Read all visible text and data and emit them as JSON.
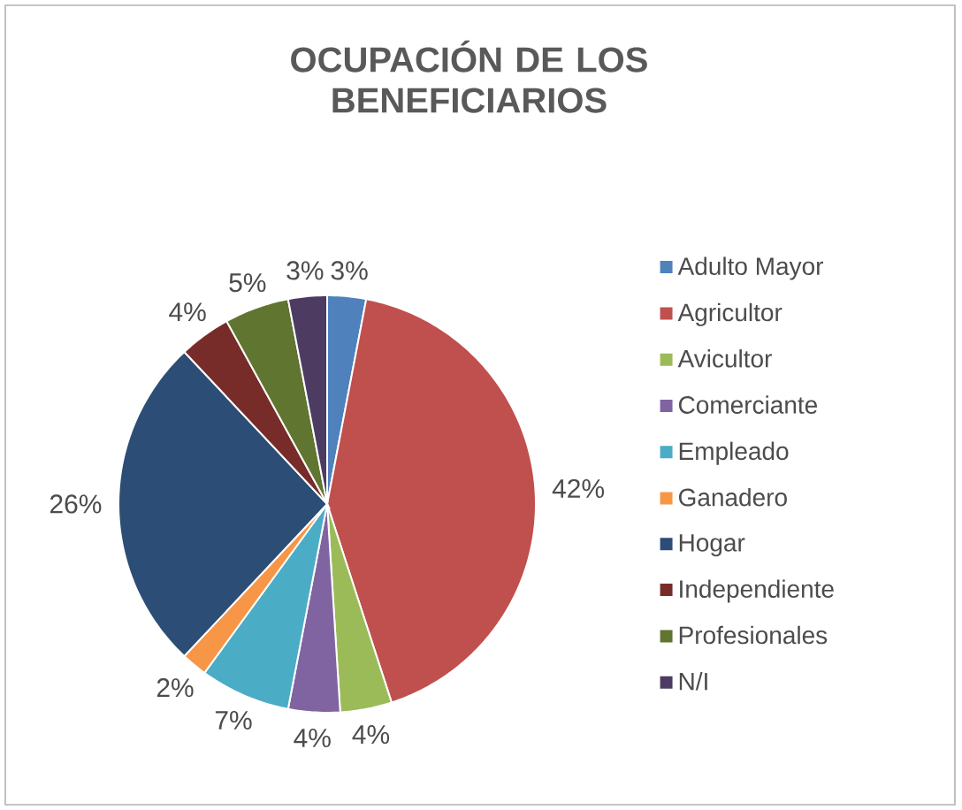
{
  "chart_data": {
    "type": "pie",
    "title": "OCUPACIÓN DE LOS BENEFICIARIOS",
    "categories": [
      "Adulto Mayor",
      "Agricultor",
      "Avicultor",
      "Comerciante",
      "Empleado",
      "Ganadero",
      "Hogar",
      "Independiente",
      "Profesionales",
      "N/I"
    ],
    "values": [
      3,
      42,
      4,
      4,
      7,
      2,
      26,
      4,
      5,
      3
    ],
    "value_labels": [
      "3%",
      "42%",
      "4%",
      "4%",
      "7%",
      "2%",
      "26%",
      "4%",
      "5%",
      "3%"
    ],
    "colors": [
      "#4f81bd",
      "#c0504d",
      "#9bbb59",
      "#8064a2",
      "#4bacc6",
      "#f79646",
      "#2c4d75",
      "#772c2a",
      "#5f7530",
      "#4d3b62"
    ],
    "legend": "right"
  }
}
